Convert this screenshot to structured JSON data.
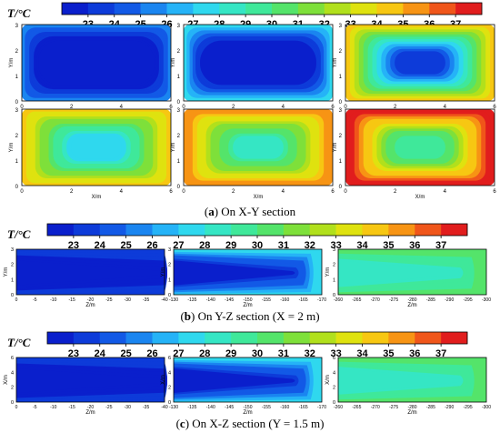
{
  "colorbar": {
    "label": "T/°C",
    "ticks": [
      "23",
      "24",
      "25",
      "26",
      "27",
      "28",
      "29",
      "30",
      "31",
      "32",
      "33",
      "34",
      "35",
      "36",
      "37"
    ],
    "colors": [
      "#0a1fcc",
      "#0d3bd9",
      "#1259e6",
      "#1a85f0",
      "#25b3f7",
      "#2fd8ee",
      "#35e6c4",
      "#3fe89a",
      "#54e46a",
      "#7ee03a",
      "#b1e01c",
      "#dfe20f",
      "#f7c712",
      "#f79414",
      "#f0561a",
      "#e11d1d"
    ]
  },
  "captions": {
    "a": {
      "letter": "a",
      "text": " On X-Y section"
    },
    "b": {
      "letter": "b",
      "text": " On Y-Z section (X = 2 m)"
    },
    "c": {
      "letter": "c",
      "text": " On X-Z section (Y = 1.5 m)"
    }
  },
  "chart_data": [
    {
      "type": "heatmap",
      "title": "(a) On X-Y section",
      "xlabel": "X/m",
      "ylabel": "Y/m",
      "xlim": [
        0,
        6
      ],
      "ylim": [
        0,
        3
      ],
      "xticks": [
        "0",
        "2",
        "4",
        "6"
      ],
      "yticks": [
        "0",
        "1",
        "2",
        "3"
      ],
      "colorbar_range": [
        23,
        37
      ],
      "panels": [
        {
          "center_temp": 23.0,
          "edge_temp": 26.0,
          "center_aspect": "wide"
        },
        {
          "center_temp": 23.5,
          "edge_temp": 28.0,
          "center_aspect": "wide"
        },
        {
          "center_temp": 24.5,
          "edge_temp": 34.0,
          "center_aspect": "medium"
        },
        {
          "center_temp": 27.5,
          "edge_temp": 34.0,
          "center_aspect": "small"
        },
        {
          "center_temp": 29.0,
          "edge_temp": 35.0,
          "center_aspect": "small"
        },
        {
          "center_temp": 29.5,
          "edge_temp": 37.0,
          "center_aspect": "small"
        }
      ]
    },
    {
      "type": "heatmap",
      "title": "(b) On Y-Z section (X = 2 m)",
      "xlabel": "Z/m",
      "ylabel": "Y/m",
      "ylim": [
        0,
        3
      ],
      "yticks": [
        "0",
        "1",
        "2",
        "3"
      ],
      "colorbar_range": [
        23,
        37
      ],
      "panels": [
        {
          "xticks": [
            "0",
            "-5",
            "-10",
            "-15",
            "-20",
            "-25",
            "-30",
            "-35",
            "-40"
          ],
          "core_temp": 23.0,
          "edge_temp": 24.5
        },
        {
          "xticks": [
            "-130",
            "-135",
            "-140",
            "-145",
            "-150",
            "-155",
            "-160",
            "-165",
            "-170"
          ],
          "core_temp": 23.5,
          "edge_temp": 27.5
        },
        {
          "xticks": [
            "-260",
            "-265",
            "-270",
            "-275",
            "-280",
            "-285",
            "-290",
            "-295",
            "-300"
          ],
          "core_temp": 28.5,
          "edge_temp": 30.5
        }
      ]
    },
    {
      "type": "heatmap",
      "title": "(c) On X-Z section (Y = 1.5 m)",
      "xlabel": "Z/m",
      "ylabel": "X/m",
      "ylim": [
        0,
        6
      ],
      "yticks": [
        "0",
        "2",
        "4",
        "6"
      ],
      "colorbar_range": [
        23,
        37
      ],
      "panels": [
        {
          "xticks": [
            "0",
            "-5",
            "-10",
            "-15",
            "-20",
            "-25",
            "-30",
            "-35",
            "-40"
          ],
          "core_temp": 23.0,
          "edge_temp": 24.5
        },
        {
          "xticks": [
            "-130",
            "-135",
            "-140",
            "-145",
            "-150",
            "-155",
            "-160",
            "-165",
            "-170"
          ],
          "core_temp": 23.5,
          "edge_temp": 27.5
        },
        {
          "xticks": [
            "-260",
            "-265",
            "-270",
            "-275",
            "-280",
            "-285",
            "-290",
            "-295",
            "-300"
          ],
          "core_temp": 28.5,
          "edge_temp": 30.5
        }
      ]
    }
  ]
}
